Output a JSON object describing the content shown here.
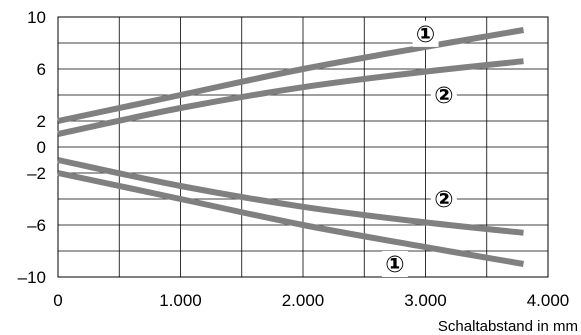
{
  "chart_data": {
    "type": "line",
    "title": "",
    "xlabel": "Schaltabstand in mm",
    "ylabel": "",
    "xlim": [
      0,
      4000
    ],
    "ylim": [
      -10,
      10
    ],
    "x_ticks": [
      0,
      1000,
      2000,
      3000,
      4000
    ],
    "x_tick_labels": [
      "0",
      "1.000",
      "2.000",
      "3.000",
      "4.000"
    ],
    "x_grid": [
      0,
      500,
      1000,
      1500,
      2000,
      2500,
      3000,
      3500,
      4000
    ],
    "y_ticks": [
      10,
      6,
      2,
      0,
      -2,
      -6,
      -10
    ],
    "y_tick_labels": [
      "10",
      "6",
      "2",
      "0",
      "–2",
      "–6",
      "–10"
    ],
    "y_grid": [
      10,
      8,
      6,
      4,
      2,
      0,
      -2,
      -4,
      -6,
      -8,
      -10
    ],
    "grid": true,
    "line_color": "#808080",
    "grid_color": "#000000",
    "series_markers": [
      {
        "label": "①",
        "x": 3000,
        "y": 8.7
      },
      {
        "label": "②",
        "x": 3150,
        "y": 4.0
      },
      {
        "label": "②",
        "x": 3150,
        "y": -4.0
      },
      {
        "label": "①",
        "x": 2750,
        "y": -9.0
      }
    ],
    "series": [
      {
        "x": [
          0,
          1000,
          2000,
          3000,
          3800
        ],
        "y": [
          2.0,
          4.0,
          6.0,
          7.7,
          9.0
        ]
      },
      {
        "x": [
          0,
          1000,
          2000,
          3000,
          3800
        ],
        "y": [
          1.0,
          3.0,
          4.6,
          5.8,
          6.6
        ]
      },
      {
        "x": [
          0,
          1000,
          2000,
          3000,
          3800
        ],
        "y": [
          -1.0,
          -3.0,
          -4.6,
          -5.8,
          -6.6
        ]
      },
      {
        "x": [
          0,
          1000,
          2000,
          3000,
          3800
        ],
        "y": [
          -2.0,
          -4.0,
          -6.0,
          -7.7,
          -9.0
        ]
      }
    ]
  }
}
